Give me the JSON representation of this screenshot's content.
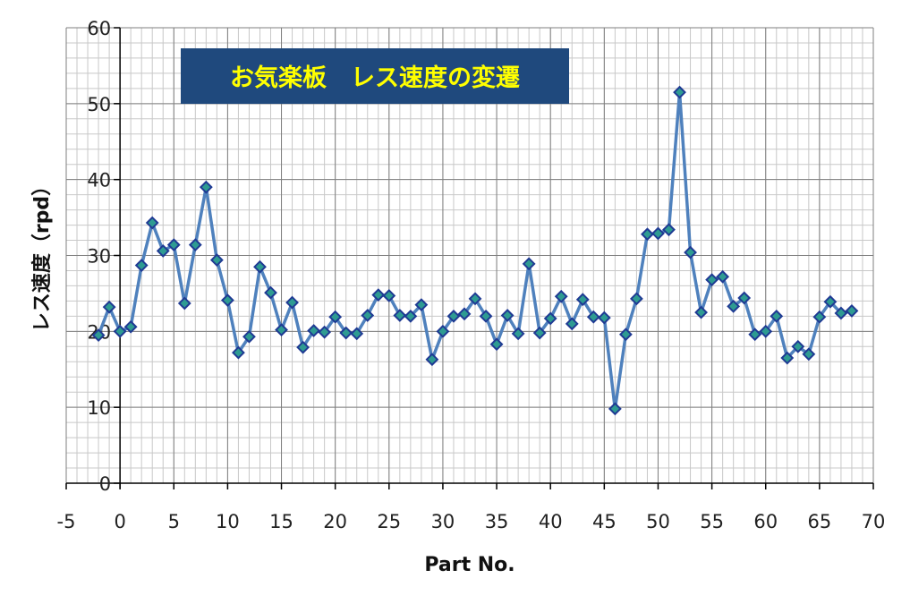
{
  "chart_data": {
    "type": "line",
    "title": "お気楽板　レス速度の変遷",
    "xlabel": "Part No.",
    "ylabel": "レス速度（rpd）",
    "xlim": [
      -5,
      70
    ],
    "ylim": [
      0,
      60
    ],
    "xticks": [
      -5,
      0,
      5,
      10,
      15,
      20,
      25,
      30,
      35,
      40,
      45,
      50,
      55,
      60,
      65,
      70
    ],
    "yticks": [
      0,
      10,
      20,
      30,
      40,
      50,
      60
    ],
    "grid": true,
    "series": [
      {
        "x": [
          -2,
          -1,
          0,
          1,
          2,
          3,
          4,
          5,
          6,
          7,
          8,
          9,
          10,
          11,
          12,
          13,
          14,
          15,
          16,
          17,
          18,
          19,
          20,
          21,
          22,
          23,
          24,
          25,
          26,
          27,
          28,
          29,
          30,
          31,
          32,
          33,
          34,
          35,
          36,
          37,
          38,
          39,
          40,
          41,
          42,
          43,
          44,
          45,
          46,
          47,
          48,
          49,
          50,
          51,
          52,
          53,
          54,
          55,
          56,
          57,
          58,
          59,
          60,
          61,
          62,
          63,
          64,
          65,
          66,
          67,
          68
        ],
        "values": [
          19.5,
          23.2,
          20.0,
          20.6,
          28.7,
          34.3,
          30.6,
          31.4,
          23.7,
          31.4,
          39.0,
          29.4,
          24.1,
          17.2,
          19.3,
          28.5,
          25.1,
          20.2,
          23.8,
          17.9,
          20.1,
          19.9,
          21.9,
          19.8,
          19.7,
          22.1,
          24.8,
          24.7,
          22.1,
          22.0,
          23.5,
          16.3,
          20.0,
          22.0,
          22.3,
          24.3,
          22.0,
          18.3,
          22.1,
          19.7,
          28.9,
          19.8,
          21.7,
          24.6,
          21.0,
          24.2,
          21.9,
          21.8,
          9.8,
          19.6,
          24.3,
          32.8,
          32.9,
          33.4,
          51.5,
          30.4,
          22.5,
          26.8,
          27.2,
          23.3,
          24.4,
          19.6,
          20.0,
          22.0,
          16.5,
          18.0,
          17.0,
          21.9,
          23.9,
          22.4,
          22.7
        ]
      }
    ],
    "colors": {
      "line": "#4f81bd",
      "marker_fill": "#2e9b92",
      "marker_edge": "#1f3a93",
      "title_bg": "#1f497d",
      "title_text": "#ffff00"
    }
  }
}
